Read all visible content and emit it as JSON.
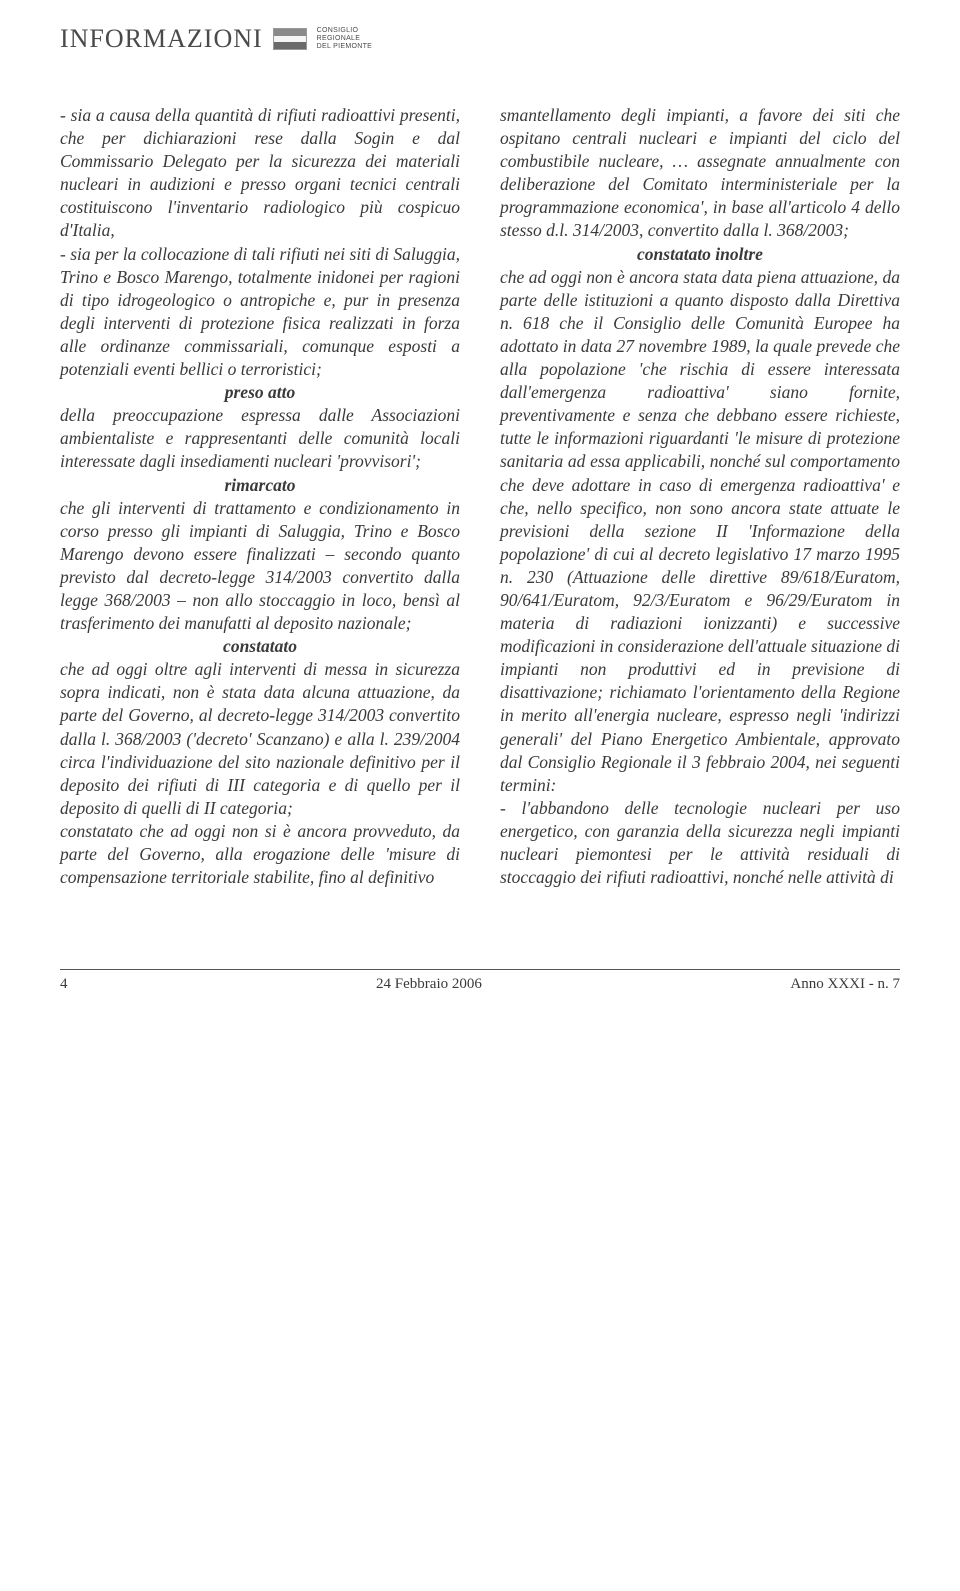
{
  "masthead": {
    "title": "INFORMAZIONI",
    "org_line1": "CONSIGLIO",
    "org_line2": "REGIONALE",
    "org_line3": "DEL PIEMONTE"
  },
  "left_column": {
    "p1_a": "- sia a causa della quantità di rifiuti radioattivi presenti, che per dichiarazioni rese dalla Sogin e dal Commissario Delegato per la sicurezza dei materiali nucleari in audizioni e presso organi tecnici centrali costituiscono l'inventario radiologico più cospicuo d'Italia,",
    "p1_b": "- sia per la collocazione di tali rifiuti nei siti di Saluggia, Trino e Bosco Marengo, totalmente inidonei per ragioni di tipo idrogeologico o antropiche e, pur in presenza degli interventi di protezione fisica realizzati in forza alle ordinanze commissariali, comunque esposti a potenziali eventi bellici o terroristici;",
    "h1": "preso atto",
    "p2": "della preoccupazione espressa dalle Associazioni ambientaliste e rappresentanti delle comunità locali interessate dagli insediamenti nucleari 'provvisori';",
    "h2": "rimarcato",
    "p3": "che gli interventi di trattamento e condizionamento in corso presso gli impianti di Saluggia, Trino e Bosco Marengo devono essere finalizzati – secondo quanto previsto dal decreto-legge 314/2003 convertito dalla legge 368/2003 – non allo stoccaggio in loco, bensì al trasferimento dei manufatti al deposito nazionale;",
    "h3": "constatato",
    "p4": "che ad oggi oltre agli interventi di messa in sicurezza sopra indicati, non è stata data alcuna attuazione, da parte del Governo, al decreto-legge 314/2003 convertito dalla l. 368/2003 ('decreto' Scanzano) e alla l. 239/2004 circa l'individuazione del sito nazionale definitivo per il deposito dei rifiuti di III categoria e di quello per il deposito di quelli di II categoria;",
    "p5": "constatato che ad oggi non si è ancora provveduto, da parte del Governo, alla erogazione delle 'misure di compensazione territoriale stabilite, fino al definitivo"
  },
  "right_column": {
    "p1": "smantellamento degli impianti, a favore dei siti che ospitano centrali nucleari e impianti del ciclo del combustibile nucleare, … assegnate annualmente con deliberazione del Comitato interministeriale per la programmazione economica', in base all'articolo 4 dello stesso d.l. 314/2003, convertito dalla l. 368/2003;",
    "h1": "constatato inoltre",
    "p2": "che ad oggi non è ancora stata data piena attuazione, da parte delle istituzioni a quanto disposto dalla Direttiva n. 618 che il Consiglio delle Comunità Europee ha adottato in data 27 novembre 1989, la quale prevede che alla popolazione 'che rischia di essere interessata dall'emergenza radioattiva' siano fornite, preventivamente e senza che debbano essere richieste, tutte le informazioni riguardanti 'le misure di protezione sanitaria ad essa applicabili, nonché sul comportamento che deve adottare in caso di emergenza radioattiva' e che, nello specifico, non sono ancora state attuate le previsioni della sezione II 'Informazione della popolazione' di cui al decreto legislativo 17 marzo 1995 n. 230 (Attuazione delle direttive 89/618/Euratom, 90/641/Euratom, 92/3/Euratom e 96/29/Euratom in materia di radiazioni ionizzanti) e successive modificazioni in considerazione dell'attuale situazione di impianti non produttivi ed in previsione di disattivazione; richiamato l'orientamento della Regione in merito all'energia nucleare, espresso negli 'indirizzi generali' del Piano Energetico Ambientale, approvato dal Consiglio Regionale il 3 febbraio 2004, nei seguenti termini:",
    "p3": "- l'abbandono delle tecnologie nucleari per uso energetico, con garanzia della sicurezza negli impianti nucleari piemontesi per le attività residuali di stoccaggio dei rifiuti radioattivi, nonché nelle attività di"
  },
  "footer": {
    "page_num": "4",
    "date": "24 Febbraio 2006",
    "issue": "Anno XXXI - n. 7"
  }
}
